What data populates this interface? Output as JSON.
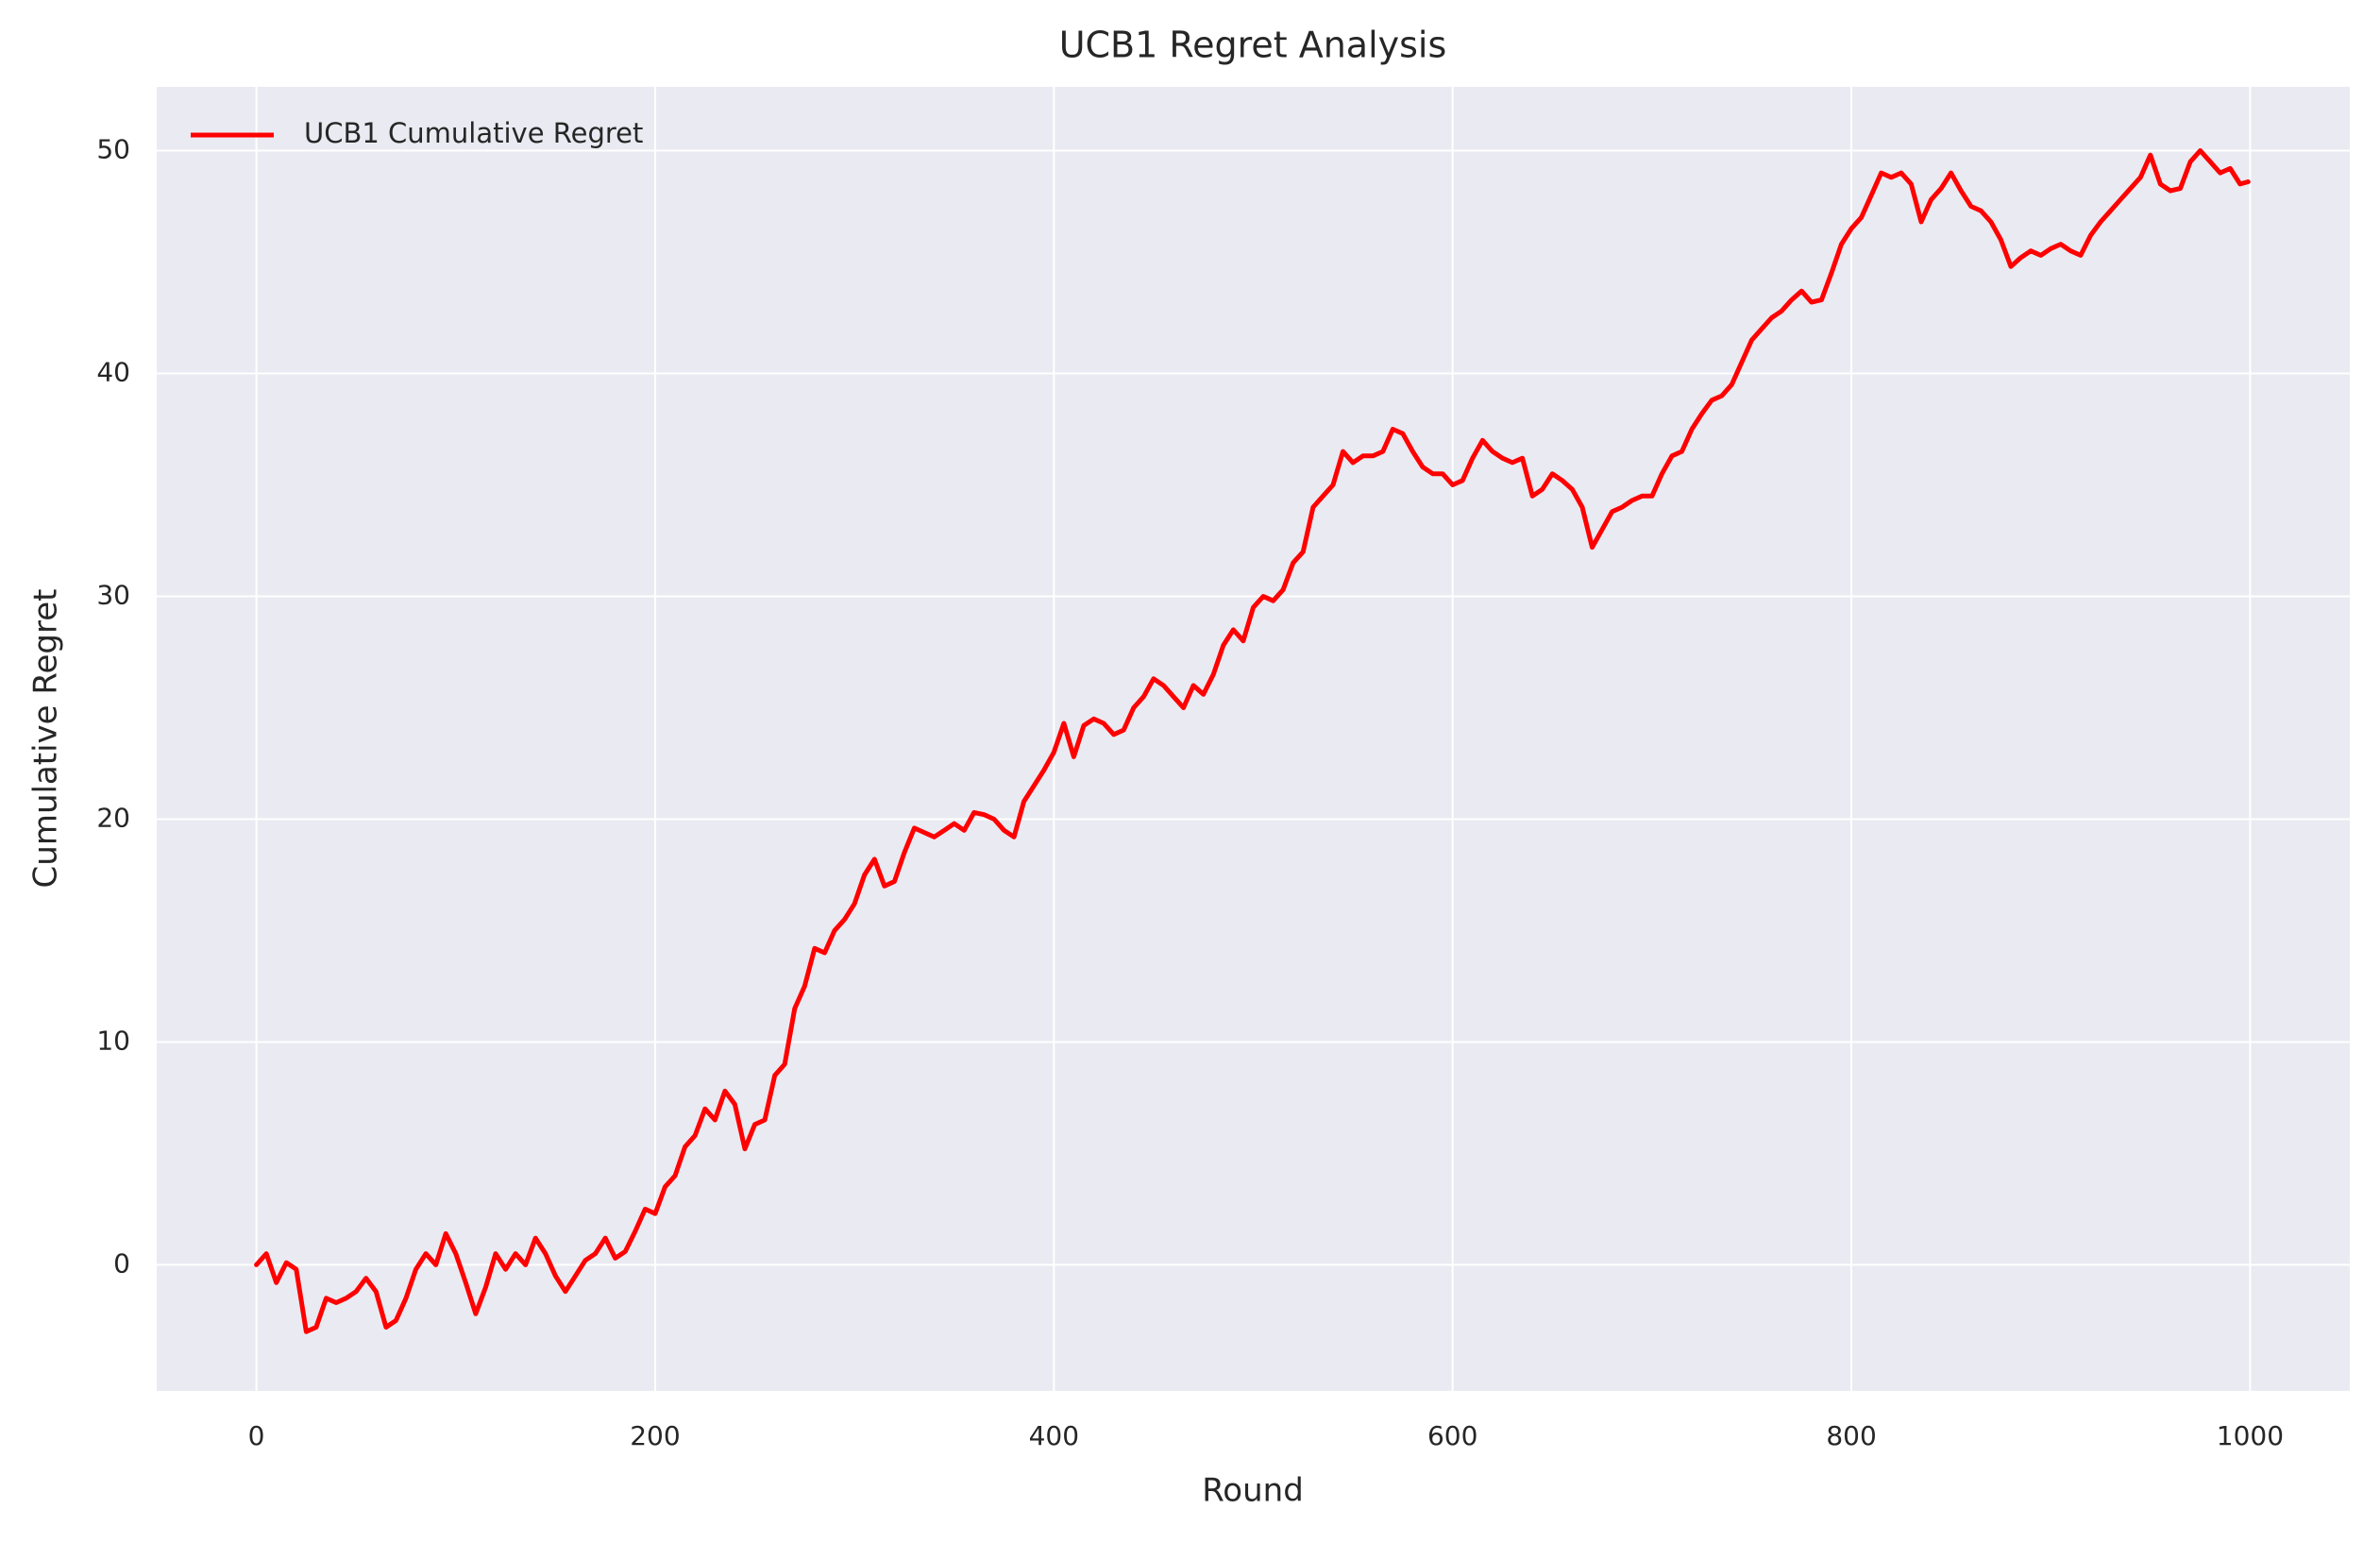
{
  "chart_data": {
    "type": "line",
    "title": "UCB1 Regret Analysis",
    "x_label": "Round",
    "y_label": "Cumulative Regret",
    "x": [
      0,
      5,
      10,
      15,
      20,
      25,
      30,
      35,
      40,
      45,
      50,
      55,
      60,
      65,
      70,
      75,
      80,
      85,
      90,
      95,
      100,
      105,
      110,
      115,
      120,
      125,
      130,
      135,
      140,
      145,
      150,
      155,
      160,
      165,
      170,
      175,
      180,
      185,
      190,
      195,
      200,
      205,
      210,
      215,
      220,
      225,
      230,
      235,
      240,
      245,
      250,
      255,
      260,
      265,
      270,
      275,
      280,
      285,
      290,
      295,
      300,
      305,
      310,
      315,
      320,
      325,
      330,
      335,
      340,
      345,
      350,
      355,
      360,
      365,
      370,
      375,
      380,
      385,
      390,
      395,
      400,
      405,
      410,
      415,
      420,
      425,
      430,
      435,
      440,
      445,
      450,
      455,
      460,
      465,
      470,
      475,
      480,
      485,
      490,
      495,
      500,
      505,
      510,
      515,
      520,
      525,
      530,
      535,
      540,
      545,
      550,
      555,
      560,
      565,
      570,
      575,
      580,
      585,
      590,
      595,
      600,
      605,
      610,
      615,
      620,
      625,
      630,
      635,
      640,
      645,
      650,
      655,
      660,
      665,
      670,
      675,
      680,
      685,
      690,
      695,
      700,
      705,
      710,
      715,
      720,
      725,
      730,
      735,
      740,
      745,
      750,
      755,
      760,
      765,
      770,
      775,
      780,
      785,
      790,
      795,
      800,
      805,
      810,
      815,
      820,
      825,
      830,
      835,
      840,
      845,
      850,
      855,
      860,
      865,
      870,
      875,
      880,
      885,
      890,
      895,
      900,
      905,
      910,
      915,
      920,
      925,
      930,
      935,
      940,
      945,
      950,
      955,
      960,
      965,
      970,
      975,
      980,
      985,
      990,
      995,
      999
    ],
    "series": [
      {
        "name": "UCB1 Cumulative Regret",
        "color": "#ff0000",
        "values": [
          0,
          0.5,
          -0.8,
          0.1,
          -0.2,
          -3,
          -2.8,
          -1.5,
          -1.7,
          -1.5,
          -1.2,
          -0.6,
          -1.2,
          -2.8,
          -2.5,
          -1.5,
          -0.2,
          0.5,
          0,
          1.4,
          0.5,
          -0.8,
          -2.2,
          -1,
          0.5,
          -0.2,
          0.5,
          0,
          1.2,
          0.5,
          -0.5,
          -1.2,
          -0.5,
          0.2,
          0.5,
          1.2,
          0.3,
          0.6,
          1.5,
          2.5,
          2.3,
          3.5,
          4,
          5.3,
          5.8,
          7,
          6.5,
          7.8,
          7.2,
          5.2,
          6.3,
          6.5,
          8.5,
          9,
          11.5,
          12.5,
          14.2,
          14,
          15,
          15.5,
          16.2,
          17.5,
          18.2,
          17,
          17.2,
          18.5,
          19.6,
          19.4,
          19.2,
          19.5,
          19.8,
          19.5,
          20.3,
          20.2,
          20,
          19.5,
          19.2,
          20.8,
          21.5,
          22.2,
          23,
          24.3,
          22.8,
          24.2,
          24.5,
          24.3,
          23.8,
          24,
          25,
          25.5,
          26.3,
          26,
          25.5,
          25,
          26,
          25.6,
          26.5,
          27.8,
          28.5,
          28,
          29.5,
          30,
          29.8,
          30.3,
          31.5,
          32,
          34,
          34.5,
          35,
          36.5,
          36,
          36.3,
          36.3,
          36.5,
          37.5,
          37.3,
          36.5,
          35.8,
          35.5,
          35.5,
          35,
          35.2,
          36.2,
          37,
          36.5,
          36.2,
          36,
          36.2,
          34.5,
          34.8,
          35.5,
          35.2,
          34.8,
          34,
          32.2,
          33,
          33.8,
          34,
          34.3,
          34.5,
          34.5,
          35.5,
          36.3,
          36.5,
          37.5,
          38.2,
          38.8,
          39,
          39.5,
          40.5,
          41.5,
          42,
          42.5,
          42.8,
          43.3,
          43.7,
          43.2,
          43.3,
          44.5,
          45.8,
          46.5,
          47,
          48,
          49,
          48.8,
          49,
          48.5,
          46.8,
          47.8,
          48.3,
          49,
          48.2,
          47.5,
          47.3,
          46.8,
          46,
          44.8,
          45.2,
          45.5,
          45.3,
          45.6,
          45.8,
          45.5,
          45.3,
          46.2,
          46.8,
          47.3,
          47.8,
          48.3,
          48.8,
          49.8,
          48.5,
          48.2,
          48.3,
          49.5,
          50,
          49.5,
          49,
          49.2,
          48.5,
          48.6
        ]
      }
    ],
    "xlim": [
      -50,
      1050
    ],
    "ylim": [
      -5.66,
      52.86
    ],
    "xticks": [
      0,
      200,
      400,
      600,
      800,
      1000
    ],
    "yticks": [
      0,
      10,
      20,
      30,
      40,
      50
    ],
    "grid": true,
    "legend": "upper left"
  }
}
